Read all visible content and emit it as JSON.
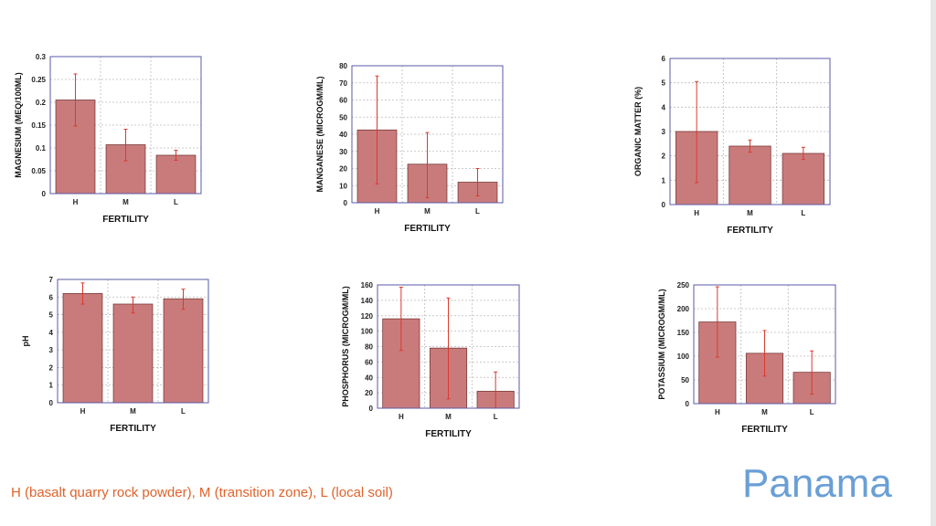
{
  "slide": {
    "footnote": "H (basalt quarry rock powder), M (transition zone), L (local soil)",
    "brand": "Panama"
  },
  "style": {
    "bar_fill": "#c97b7b",
    "bar_stroke": "#7a3a3a",
    "error_color": "#d93a2e",
    "frame_color": "#5a5aa8",
    "grid_color": "#bbbbbb"
  },
  "chart_data": [
    {
      "type": "bar",
      "categories": [
        "H",
        "M",
        "L"
      ],
      "values": [
        0.205,
        0.107,
        0.084
      ],
      "error_low": [
        0.148,
        0.072,
        0.073
      ],
      "error_high": [
        0.262,
        0.141,
        0.095
      ],
      "xlabel": "FERTILITY",
      "ylabel": "MAGNESIUM (MEQ/100ML)",
      "ylim": [
        0,
        0.3
      ],
      "yticks": [
        "0",
        "0.05",
        "0.1",
        "0.15",
        "0.2",
        "0.25",
        "0.3"
      ],
      "grid": true
    },
    {
      "type": "bar",
      "categories": [
        "H",
        "M",
        "L"
      ],
      "values": [
        42.5,
        22.5,
        12
      ],
      "error_low": [
        11,
        3,
        4
      ],
      "error_high": [
        74,
        41,
        20
      ],
      "xlabel": "FERTILITY",
      "ylabel": "MANGANESE (MICROGM/ML)",
      "ylim": [
        0,
        80
      ],
      "yticks": [
        "0",
        "10",
        "20",
        "30",
        "40",
        "50",
        "60",
        "70",
        "80"
      ],
      "grid": true
    },
    {
      "type": "bar",
      "categories": [
        "H",
        "M",
        "L"
      ],
      "values": [
        3.0,
        2.4,
        2.1
      ],
      "error_low": [
        0.9,
        2.15,
        1.85
      ],
      "error_high": [
        5.05,
        2.65,
        2.35
      ],
      "xlabel": "FERTILITY",
      "ylabel": "ORGANIC MATTER (%)",
      "ylim": [
        0,
        6
      ],
      "yticks": [
        "0",
        "1",
        "2",
        "3",
        "4",
        "5",
        "6"
      ],
      "grid": true
    },
    {
      "type": "bar",
      "categories": [
        "H",
        "M",
        "L"
      ],
      "values": [
        6.2,
        5.6,
        5.9
      ],
      "error_low": [
        5.6,
        5.1,
        5.3
      ],
      "error_high": [
        6.8,
        6.0,
        6.45
      ],
      "xlabel": "FERTILITY",
      "ylabel": "pH",
      "ylim": [
        0,
        7
      ],
      "yticks": [
        "0",
        "1",
        "2",
        "3",
        "4",
        "5",
        "6",
        "7"
      ],
      "grid": true
    },
    {
      "type": "bar",
      "categories": [
        "H",
        "M",
        "L"
      ],
      "values": [
        116,
        78,
        22
      ],
      "error_low": [
        75,
        12,
        0
      ],
      "error_high": [
        157,
        143,
        47
      ],
      "xlabel": "FERTILITY",
      "ylabel": "PHOSPHORUS (MICROGM/ML)",
      "ylim": [
        0,
        160
      ],
      "yticks": [
        "0",
        "20",
        "40",
        "60",
        "80",
        "100",
        "120",
        "140",
        "160"
      ],
      "grid": true
    },
    {
      "type": "bar",
      "categories": [
        "H",
        "M",
        "L"
      ],
      "values": [
        172,
        106,
        66
      ],
      "error_low": [
        98,
        58,
        20
      ],
      "error_high": [
        246,
        154,
        111
      ],
      "xlabel": "FERTILITY",
      "ylabel": "POTASSIUM (MICROGM/ML)",
      "ylim": [
        0,
        250
      ],
      "yticks": [
        "0",
        "50",
        "100",
        "150",
        "200",
        "250"
      ],
      "grid": true
    }
  ]
}
